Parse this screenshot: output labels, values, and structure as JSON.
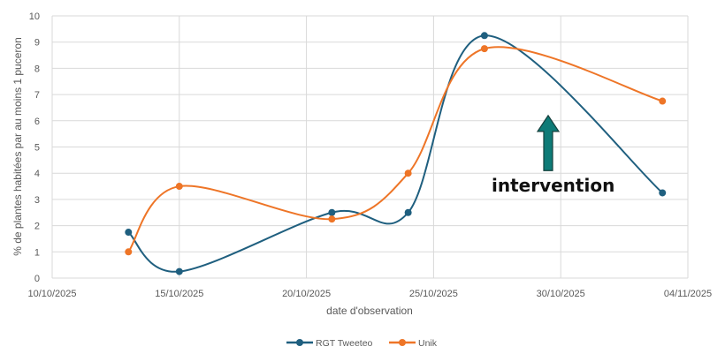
{
  "chart_data": {
    "type": "line",
    "title": "",
    "xlabel": "date d'observation",
    "ylabel": "% de plantes habitées par au moins 1 puceron",
    "ylim": [
      0,
      10
    ],
    "yticks": [
      0,
      1,
      2,
      3,
      4,
      5,
      6,
      7,
      8,
      9,
      10
    ],
    "xlim": [
      "10/10/2025",
      "04/11/2025"
    ],
    "xticks": [
      "10/10/2025",
      "15/10/2025",
      "20/10/2025",
      "25/10/2025",
      "30/10/2025",
      "04/11/2025"
    ],
    "grid": true,
    "legend_position": "bottom",
    "smoothed": true,
    "x": [
      "13/10/2025",
      "15/10/2025",
      "21/10/2025",
      "24/10/2025",
      "27/10/2025",
      "03/11/2025"
    ],
    "x_day_offsets": [
      3,
      5,
      11,
      14,
      17,
      24
    ],
    "series": [
      {
        "name": "RGT Tweeteo",
        "color": "#1F5F7F",
        "values": [
          1.75,
          0.25,
          2.5,
          2.5,
          9.25,
          3.25
        ]
      },
      {
        "name": "Unik",
        "color": "#EE7527",
        "values": [
          1.0,
          3.5,
          2.25,
          4.0,
          8.75,
          6.75
        ]
      }
    ],
    "annotations": [
      {
        "text": "intervention",
        "type": "arrow-up",
        "arrow_color": "#0E7B77",
        "near_x": "29/10/2025",
        "y_range": [
          4.1,
          6.2
        ]
      }
    ]
  }
}
